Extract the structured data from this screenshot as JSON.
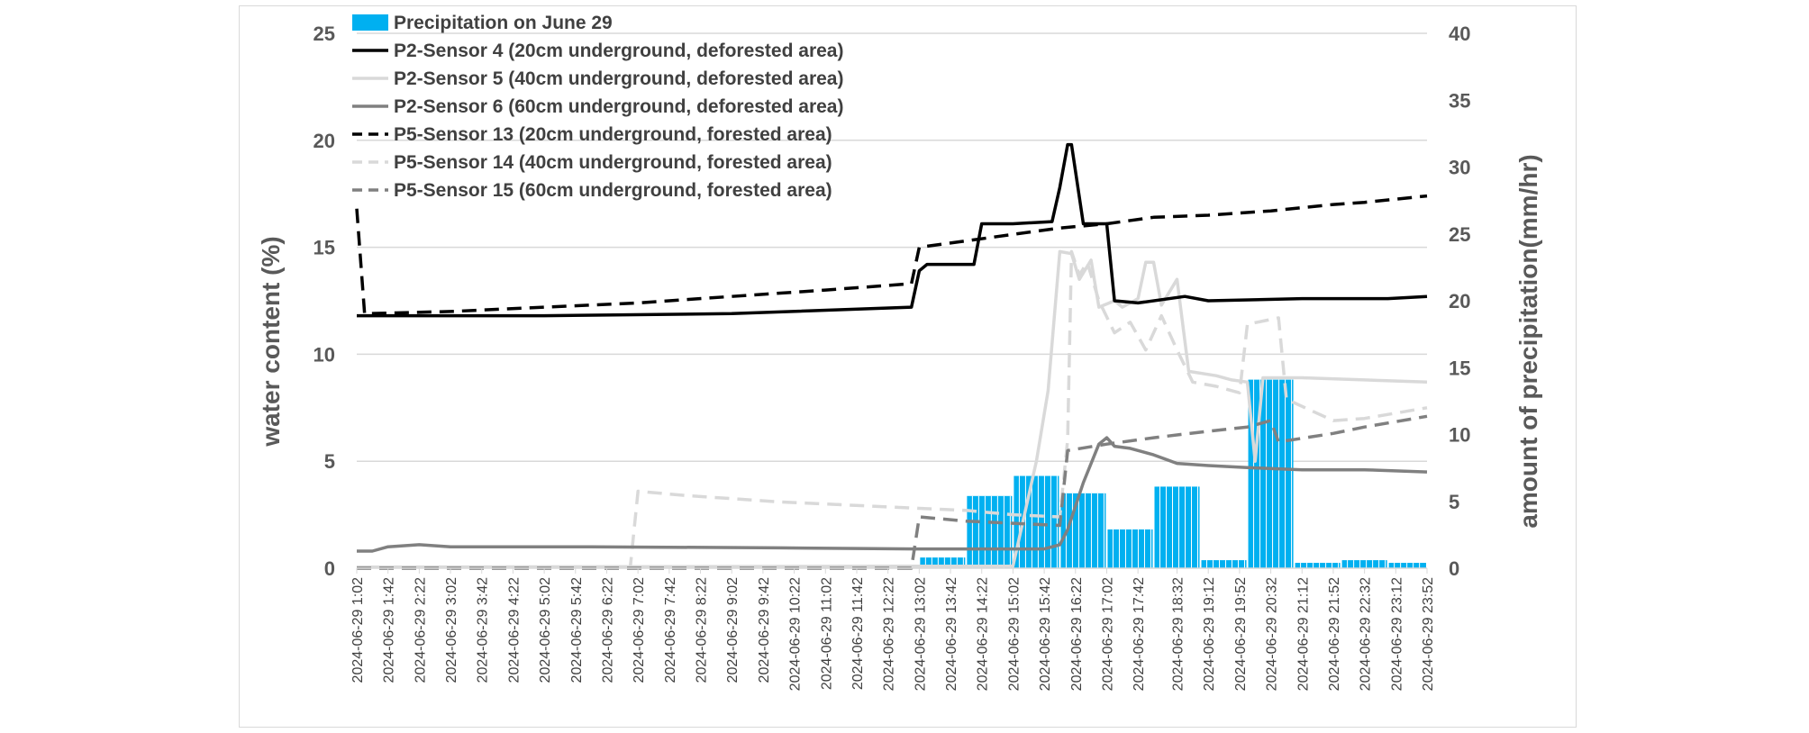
{
  "chart_data": {
    "type": "line",
    "y_left": {
      "label": "water content (%)",
      "min": 0,
      "max": 25,
      "ticks": [
        0,
        5,
        10,
        15,
        20,
        25
      ]
    },
    "y_right": {
      "label": "amount of precipitation(mm/hr)",
      "min": 0,
      "max": 40,
      "ticks": [
        0,
        5,
        10,
        15,
        20,
        25,
        30,
        35,
        40
      ]
    },
    "gridlines": true,
    "legend_position": "top-left",
    "x": {
      "min": "2024-06-29 1:02",
      "max": "2024-06-29 23:52",
      "ticks": [
        "2024-06-29 1:02",
        "2024-06-29 1:42",
        "2024-06-29 2:22",
        "2024-06-29 3:02",
        "2024-06-29 3:42",
        "2024-06-29 4:22",
        "2024-06-29 5:02",
        "2024-06-29 5:42",
        "2024-06-29 6:22",
        "2024-06-29 7:02",
        "2024-06-29 7:42",
        "2024-06-29 8:22",
        "2024-06-29 9:02",
        "2024-06-29 9:42",
        "2024-06-29 10:22",
        "2024-06-29 11:02",
        "2024-06-29 11:42",
        "2024-06-29 12:22",
        "2024-06-29 13:02",
        "2024-06-29 13:42",
        "2024-06-29 14:22",
        "2024-06-29 15:02",
        "2024-06-29 15:42",
        "2024-06-29 16:22",
        "2024-06-29 17:02",
        "2024-06-29 17:42",
        "2024-06-29 18:32",
        "2024-06-29 19:12",
        "2024-06-29 19:52",
        "2024-06-29 20:32",
        "2024-06-29 21:12",
        "2024-06-29 21:52",
        "2024-06-29 22:32",
        "2024-06-29 23:12",
        "2024-06-29 23:52"
      ]
    },
    "precipitation": {
      "name": "Precipitation on June 29",
      "color": "#00b0f0",
      "axis": "right",
      "bars": [
        {
          "start": "2024-06-29 13:02",
          "end": "2024-06-29 14:02",
          "value": 0.8
        },
        {
          "start": "2024-06-29 14:02",
          "end": "2024-06-29 15:02",
          "value": 5.4
        },
        {
          "start": "2024-06-29 15:02",
          "end": "2024-06-29 16:02",
          "value": 6.9
        },
        {
          "start": "2024-06-29 16:02",
          "end": "2024-06-29 17:02",
          "value": 5.6
        },
        {
          "start": "2024-06-29 17:02",
          "end": "2024-06-29 18:02",
          "value": 2.9
        },
        {
          "start": "2024-06-29 18:02",
          "end": "2024-06-29 19:02",
          "value": 6.1
        },
        {
          "start": "2024-06-29 19:02",
          "end": "2024-06-29 20:02",
          "value": 0.6
        },
        {
          "start": "2024-06-29 20:02",
          "end": "2024-06-29 21:02",
          "value": 14.1
        },
        {
          "start": "2024-06-29 21:02",
          "end": "2024-06-29 22:02",
          "value": 0.4
        },
        {
          "start": "2024-06-29 22:02",
          "end": "2024-06-29 23:02",
          "value": 0.6
        },
        {
          "start": "2024-06-29 23:02",
          "end": "2024-06-29 23:52",
          "value": 0.4
        }
      ]
    },
    "series": [
      {
        "name": "P2-Sensor 4 (20cm underground, deforested area)",
        "color": "#000000",
        "dash": "solid",
        "axis": "left",
        "points": [
          [
            "2024-06-29 1:02",
            11.8
          ],
          [
            "2024-06-29 5:02",
            11.8
          ],
          [
            "2024-06-29 9:02",
            11.9
          ],
          [
            "2024-06-29 12:52",
            12.2
          ],
          [
            "2024-06-29 13:02",
            13.9
          ],
          [
            "2024-06-29 13:12",
            14.2
          ],
          [
            "2024-06-29 14:12",
            14.2
          ],
          [
            "2024-06-29 14:22",
            16.1
          ],
          [
            "2024-06-29 15:02",
            16.1
          ],
          [
            "2024-06-29 15:52",
            16.2
          ],
          [
            "2024-06-29 16:02",
            17.8
          ],
          [
            "2024-06-29 16:12",
            19.8
          ],
          [
            "2024-06-29 16:17",
            19.8
          ],
          [
            "2024-06-29 16:32",
            16.1
          ],
          [
            "2024-06-29 17:02",
            16.1
          ],
          [
            "2024-06-29 17:12",
            12.5
          ],
          [
            "2024-06-29 17:42",
            12.4
          ],
          [
            "2024-06-29 18:42",
            12.7
          ],
          [
            "2024-06-29 19:12",
            12.5
          ],
          [
            "2024-06-29 21:12",
            12.6
          ],
          [
            "2024-06-29 23:02",
            12.6
          ],
          [
            "2024-06-29 23:52",
            12.7
          ]
        ]
      },
      {
        "name": "P2-Sensor 5 (40cm underground, deforested area)",
        "color": "#d9d9d9",
        "dash": "solid",
        "axis": "left",
        "points": [
          [
            "2024-06-29 1:02",
            0.05
          ],
          [
            "2024-06-29 15:02",
            0.1
          ],
          [
            "2024-06-29 15:32",
            5.0
          ],
          [
            "2024-06-29 15:47",
            8.3
          ],
          [
            "2024-06-29 16:02",
            14.8
          ],
          [
            "2024-06-29 16:17",
            14.7
          ],
          [
            "2024-06-29 16:27",
            13.5
          ],
          [
            "2024-06-29 16:42",
            14.4
          ],
          [
            "2024-06-29 16:52",
            12.2
          ],
          [
            "2024-06-29 17:12",
            12.5
          ],
          [
            "2024-06-29 17:22",
            12.2
          ],
          [
            "2024-06-29 17:42",
            12.6
          ],
          [
            "2024-06-29 17:52",
            14.3
          ],
          [
            "2024-06-29 18:02",
            14.3
          ],
          [
            "2024-06-29 18:12",
            12.3
          ],
          [
            "2024-06-29 18:32",
            13.5
          ],
          [
            "2024-06-29 18:47",
            9.2
          ],
          [
            "2024-06-29 19:22",
            9.0
          ],
          [
            "2024-06-29 19:42",
            8.8
          ],
          [
            "2024-06-29 20:02",
            8.7
          ],
          [
            "2024-06-29 20:12",
            5.0
          ],
          [
            "2024-06-29 20:22",
            8.9
          ],
          [
            "2024-06-29 21:12",
            8.9
          ],
          [
            "2024-06-29 22:32",
            8.8
          ],
          [
            "2024-06-29 23:52",
            8.7
          ]
        ]
      },
      {
        "name": "P2-Sensor 6 (60cm underground, deforested area)",
        "color": "#808080",
        "dash": "solid",
        "axis": "left",
        "points": [
          [
            "2024-06-29 1:02",
            0.8
          ],
          [
            "2024-06-29 1:22",
            0.8
          ],
          [
            "2024-06-29 1:42",
            1.0
          ],
          [
            "2024-06-29 2:22",
            1.1
          ],
          [
            "2024-06-29 3:02",
            1.0
          ],
          [
            "2024-06-29 5:02",
            1.0
          ],
          [
            "2024-06-29 6:02",
            1.0
          ],
          [
            "2024-06-29 10:02",
            0.95
          ],
          [
            "2024-06-29 13:02",
            0.9
          ],
          [
            "2024-06-29 15:42",
            0.9
          ],
          [
            "2024-06-29 16:02",
            1.1
          ],
          [
            "2024-06-29 16:12",
            1.8
          ],
          [
            "2024-06-29 16:32",
            4.0
          ],
          [
            "2024-06-29 16:52",
            5.8
          ],
          [
            "2024-06-29 17:02",
            6.1
          ],
          [
            "2024-06-29 17:12",
            5.7
          ],
          [
            "2024-06-29 17:32",
            5.6
          ],
          [
            "2024-06-29 18:02",
            5.3
          ],
          [
            "2024-06-29 18:32",
            4.9
          ],
          [
            "2024-06-29 19:12",
            4.8
          ],
          [
            "2024-06-29 20:02",
            4.7
          ],
          [
            "2024-06-29 21:12",
            4.6
          ],
          [
            "2024-06-29 22:32",
            4.6
          ],
          [
            "2024-06-29 23:52",
            4.5
          ]
        ]
      },
      {
        "name": "P5-Sensor 13 (20cm underground, forested area)",
        "color": "#000000",
        "dash": "long",
        "axis": "left",
        "points": [
          [
            "2024-06-29 1:02",
            16.8
          ],
          [
            "2024-06-29 1:12",
            11.9
          ],
          [
            "2024-06-29 3:02",
            12.0
          ],
          [
            "2024-06-29 5:02",
            12.2
          ],
          [
            "2024-06-29 7:02",
            12.4
          ],
          [
            "2024-06-29 9:02",
            12.7
          ],
          [
            "2024-06-29 11:02",
            13.0
          ],
          [
            "2024-06-29 12:52",
            13.3
          ],
          [
            "2024-06-29 13:02",
            15.0
          ],
          [
            "2024-06-29 14:02",
            15.3
          ],
          [
            "2024-06-29 15:02",
            15.6
          ],
          [
            "2024-06-29 16:02",
            15.9
          ],
          [
            "2024-06-29 17:02",
            16.1
          ],
          [
            "2024-06-29 18:02",
            16.4
          ],
          [
            "2024-06-29 19:12",
            16.5
          ],
          [
            "2024-06-29 20:32",
            16.7
          ],
          [
            "2024-06-29 21:52",
            17.0
          ],
          [
            "2024-06-29 22:32",
            17.1
          ],
          [
            "2024-06-29 23:52",
            17.4
          ]
        ]
      },
      {
        "name": "P5-Sensor 14 (40cm underground, forested area)",
        "color": "#d9d9d9",
        "dash": "long",
        "axis": "left",
        "points": [
          [
            "2024-06-29 1:02",
            0.0
          ],
          [
            "2024-06-29 6:52",
            0.0
          ],
          [
            "2024-06-29 7:02",
            3.6
          ],
          [
            "2024-06-29 8:02",
            3.4
          ],
          [
            "2024-06-29 10:02",
            3.1
          ],
          [
            "2024-06-29 13:02",
            2.8
          ],
          [
            "2024-06-29 14:02",
            2.7
          ],
          [
            "2024-06-29 15:02",
            2.5
          ],
          [
            "2024-06-29 16:02",
            2.4
          ],
          [
            "2024-06-29 16:12",
            6.0
          ],
          [
            "2024-06-29 16:17",
            14.8
          ],
          [
            "2024-06-29 16:27",
            13.7
          ],
          [
            "2024-06-29 16:37",
            14.3
          ],
          [
            "2024-06-29 16:52",
            12.5
          ],
          [
            "2024-06-29 17:12",
            11.0
          ],
          [
            "2024-06-29 17:32",
            11.5
          ],
          [
            "2024-06-29 17:52",
            10.2
          ],
          [
            "2024-06-29 18:12",
            11.8
          ],
          [
            "2024-06-29 18:32",
            10.2
          ],
          [
            "2024-06-29 18:52",
            8.7
          ],
          [
            "2024-06-29 19:22",
            8.5
          ],
          [
            "2024-06-29 19:52",
            8.2
          ],
          [
            "2024-06-29 20:02",
            11.4
          ],
          [
            "2024-06-29 20:42",
            11.7
          ],
          [
            "2024-06-29 20:52",
            7.9
          ],
          [
            "2024-06-29 21:52",
            6.9
          ],
          [
            "2024-06-29 22:32",
            7.0
          ],
          [
            "2024-06-29 23:52",
            7.5
          ]
        ]
      },
      {
        "name": "P5-Sensor 15 (60cm underground, forested area)",
        "color": "#808080",
        "dash": "long",
        "axis": "left",
        "points": [
          [
            "2024-06-29 1:02",
            0.0
          ],
          [
            "2024-06-29 12:52",
            0.0
          ],
          [
            "2024-06-29 13:02",
            2.4
          ],
          [
            "2024-06-29 14:02",
            2.2
          ],
          [
            "2024-06-29 15:02",
            2.1
          ],
          [
            "2024-06-29 16:02",
            2.0
          ],
          [
            "2024-06-29 16:12",
            5.5
          ],
          [
            "2024-06-29 17:02",
            5.8
          ],
          [
            "2024-06-29 18:02",
            6.1
          ],
          [
            "2024-06-29 19:12",
            6.4
          ],
          [
            "2024-06-29 20:02",
            6.6
          ],
          [
            "2024-06-29 20:32",
            6.9
          ],
          [
            "2024-06-29 20:42",
            5.9
          ],
          [
            "2024-06-29 21:52",
            6.3
          ],
          [
            "2024-06-29 22:32",
            6.6
          ],
          [
            "2024-06-29 23:52",
            7.1
          ]
        ]
      }
    ]
  }
}
